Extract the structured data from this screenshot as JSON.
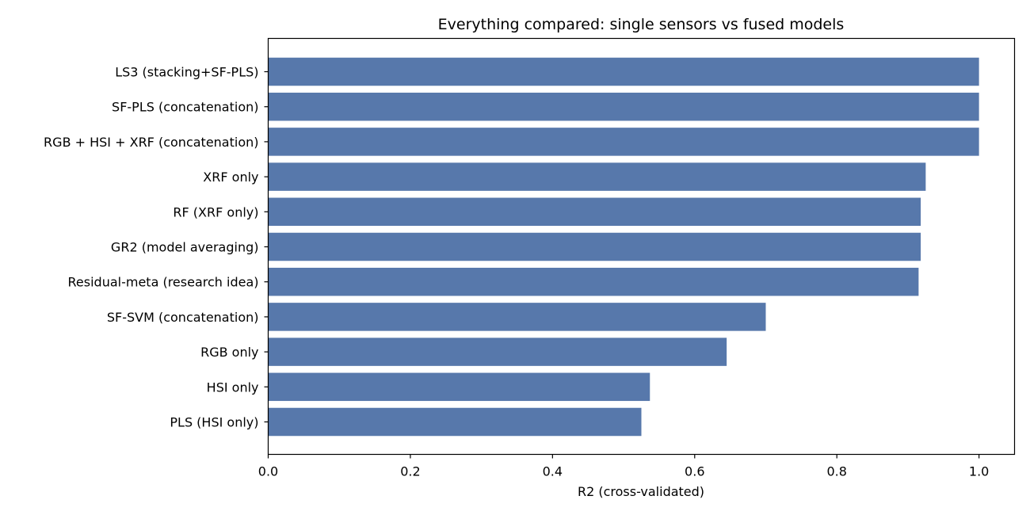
{
  "chart_data": {
    "type": "bar",
    "orientation": "horizontal",
    "title": "Everything compared: single sensors vs fused models",
    "xlabel": "R2 (cross-validated)",
    "ylabel": "",
    "xlim": [
      0.0,
      1.05
    ],
    "xticks": [
      "0.0",
      "0.2",
      "0.4",
      "0.6",
      "0.8",
      "1.0"
    ],
    "grid": false,
    "bar_color": "#5778ab",
    "categories": [
      "LS3 (stacking+SF-PLS)",
      "SF-PLS (concatenation)",
      "RGB + HSI + XRF (concatenation)",
      "XRF only",
      "RF (XRF only)",
      "GR2 (model averaging)",
      "Residual-meta (research idea)",
      "SF-SVM (concatenation)",
      "RGB only",
      "HSI only",
      "PLS (HSI only)"
    ],
    "values": [
      1.0,
      1.0,
      1.0,
      0.925,
      0.918,
      0.918,
      0.915,
      0.7,
      0.645,
      0.537,
      0.525
    ]
  }
}
